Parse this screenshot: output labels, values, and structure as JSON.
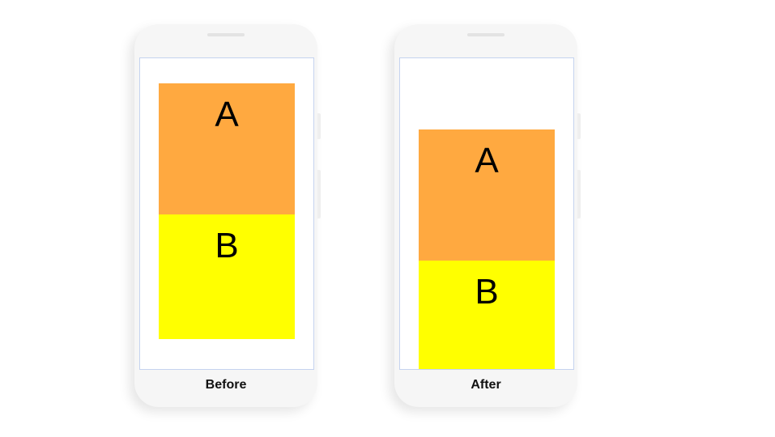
{
  "phones": [
    {
      "label": "Before",
      "box_a": "A",
      "box_b": "B"
    },
    {
      "label": "After",
      "box_a": "A",
      "box_b": "B"
    }
  ],
  "colors": {
    "box_a": "#ffa940",
    "box_b": "#ffff00",
    "screen_border": "#c5d3ef",
    "phone_body": "#f6f6f6"
  }
}
